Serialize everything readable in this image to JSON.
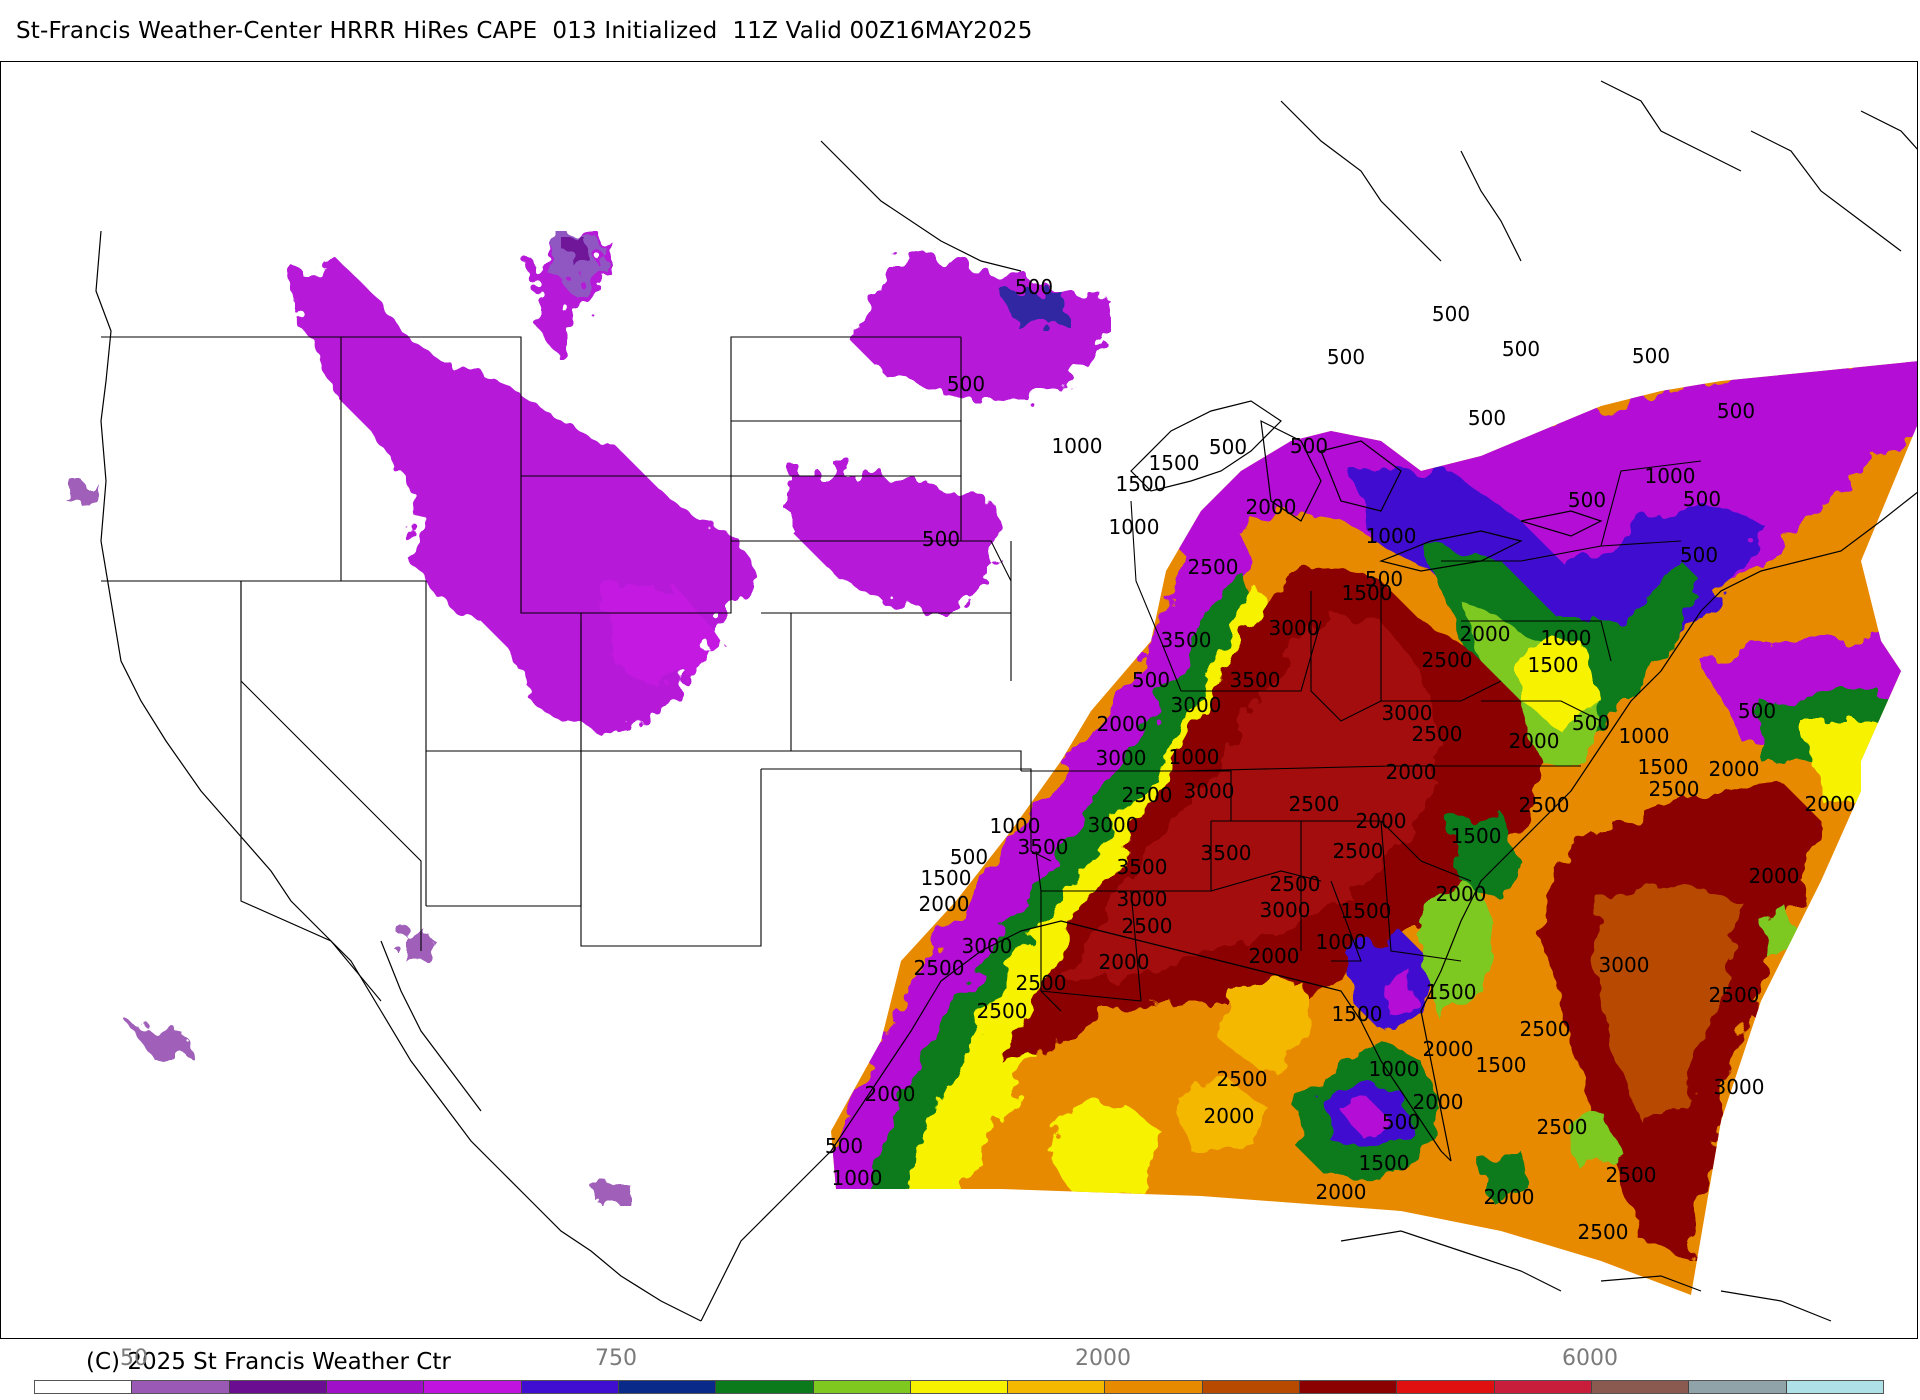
{
  "header": {
    "title": "St-Francis Weather-Center HRRR HiRes CAPE  013 Initialized  11Z Valid 00Z16MAY2025"
  },
  "footer": {
    "copyright": "(C) 2025 St Francis Weather Ctr"
  },
  "colorbar": {
    "visible_labels": [
      "50",
      "750",
      "2000",
      "6000"
    ],
    "colors": [
      "#ffffff",
      "#9b59b6",
      "#6a0d91",
      "#a010c8",
      "#c013e0",
      "#3f0ed0",
      "#0a2a8a",
      "#0b7a1a",
      "#7ec820",
      "#f6f200",
      "#f5b800",
      "#e88a00",
      "#b84a00",
      "#8b0000",
      "#e01010",
      "#c81e3c",
      "#8a5a50",
      "#8fa3a8",
      "#aee0e8"
    ]
  },
  "map": {
    "region": "United States / Gulf of Mexico / Western Atlantic",
    "field": "CAPE",
    "contour_labels": [
      {
        "text": "500",
        "tx": 1033,
        "ty": 293
      },
      {
        "text": "500",
        "tx": 965,
        "ty": 390
      },
      {
        "text": "500",
        "tx": 1450,
        "ty": 320
      },
      {
        "text": "500",
        "tx": 1345,
        "ty": 363
      },
      {
        "text": "500",
        "tx": 1520,
        "ty": 355
      },
      {
        "text": "500",
        "tx": 1650,
        "ty": 362
      },
      {
        "text": "500",
        "tx": 1486,
        "ty": 424
      },
      {
        "text": "500",
        "tx": 1735,
        "ty": 417
      },
      {
        "text": "500",
        "tx": 1227,
        "ty": 453
      },
      {
        "text": "500",
        "tx": 1308,
        "ty": 452
      },
      {
        "text": "500",
        "tx": 1586,
        "ty": 506
      },
      {
        "text": "500",
        "tx": 1701,
        "ty": 505
      },
      {
        "text": "500",
        "tx": 1698,
        "ty": 561
      },
      {
        "text": "500",
        "tx": 940,
        "ty": 545
      },
      {
        "text": "500",
        "tx": 1383,
        "ty": 585
      },
      {
        "text": "500",
        "tx": 1150,
        "ty": 686
      },
      {
        "text": "500",
        "tx": 1590,
        "ty": 729
      },
      {
        "text": "500",
        "tx": 1756,
        "ty": 717
      },
      {
        "text": "500",
        "tx": 968,
        "ty": 863
      },
      {
        "text": "500",
        "tx": 1400,
        "ty": 1128
      },
      {
        "text": "500",
        "tx": 843,
        "ty": 1152
      },
      {
        "text": "1000",
        "tx": 1076,
        "ty": 452
      },
      {
        "text": "1000",
        "tx": 1133,
        "ty": 533
      },
      {
        "text": "1000",
        "tx": 1390,
        "ty": 542
      },
      {
        "text": "1000",
        "tx": 1669,
        "ty": 482
      },
      {
        "text": "1000",
        "tx": 1565,
        "ty": 644
      },
      {
        "text": "1000",
        "tx": 1193,
        "ty": 763
      },
      {
        "text": "1000",
        "tx": 1014,
        "ty": 832
      },
      {
        "text": "1000",
        "tx": 1643,
        "ty": 742
      },
      {
        "text": "1000",
        "tx": 1340,
        "ty": 948
      },
      {
        "text": "1000",
        "tx": 1393,
        "ty": 1075
      },
      {
        "text": "1000",
        "tx": 856,
        "ty": 1184
      },
      {
        "text": "1500",
        "tx": 1173,
        "ty": 469
      },
      {
        "text": "1500",
        "tx": 1140,
        "ty": 490
      },
      {
        "text": "1500",
        "tx": 1366,
        "ty": 599
      },
      {
        "text": "1500",
        "tx": 1552,
        "ty": 671
      },
      {
        "text": "1500",
        "tx": 1662,
        "ty": 773
      },
      {
        "text": "1500",
        "tx": 1475,
        "ty": 842
      },
      {
        "text": "1500",
        "tx": 1365,
        "ty": 917
      },
      {
        "text": "1500",
        "tx": 945,
        "ty": 884
      },
      {
        "text": "1500",
        "tx": 1450,
        "ty": 998
      },
      {
        "text": "1500",
        "tx": 1356,
        "ty": 1020
      },
      {
        "text": "1500",
        "tx": 1500,
        "ty": 1071
      },
      {
        "text": "1500",
        "tx": 1383,
        "ty": 1169
      },
      {
        "text": "2000",
        "tx": 1270,
        "ty": 513
      },
      {
        "text": "2000",
        "tx": 1484,
        "ty": 640
      },
      {
        "text": "2000",
        "tx": 1533,
        "ty": 747
      },
      {
        "text": "2000",
        "tx": 1410,
        "ty": 778
      },
      {
        "text": "2000",
        "tx": 1733,
        "ty": 775
      },
      {
        "text": "2000",
        "tx": 1829,
        "ty": 810
      },
      {
        "text": "2000",
        "tx": 1121,
        "ty": 730
      },
      {
        "text": "2000",
        "tx": 1380,
        "ty": 827
      },
      {
        "text": "2000",
        "tx": 1773,
        "ty": 882
      },
      {
        "text": "2000",
        "tx": 943,
        "ty": 910
      },
      {
        "text": "2000",
        "tx": 1460,
        "ty": 900
      },
      {
        "text": "2000",
        "tx": 1123,
        "ty": 968
      },
      {
        "text": "2000",
        "tx": 1273,
        "ty": 962
      },
      {
        "text": "2000",
        "tx": 1447,
        "ty": 1055
      },
      {
        "text": "2000",
        "tx": 1437,
        "ty": 1108
      },
      {
        "text": "2000",
        "tx": 889,
        "ty": 1100
      },
      {
        "text": "2000",
        "tx": 1228,
        "ty": 1122
      },
      {
        "text": "2000",
        "tx": 1340,
        "ty": 1198
      },
      {
        "text": "2000",
        "tx": 1508,
        "ty": 1203
      },
      {
        "text": "2500",
        "tx": 1212,
        "ty": 573
      },
      {
        "text": "2500",
        "tx": 1446,
        "ty": 666
      },
      {
        "text": "2500",
        "tx": 1436,
        "ty": 740
      },
      {
        "text": "2500",
        "tx": 1543,
        "ty": 811
      },
      {
        "text": "2500",
        "tx": 1673,
        "ty": 795
      },
      {
        "text": "2500",
        "tx": 1146,
        "ty": 801
      },
      {
        "text": "2500",
        "tx": 1313,
        "ty": 810
      },
      {
        "text": "2500",
        "tx": 1357,
        "ty": 857
      },
      {
        "text": "2500",
        "tx": 1294,
        "ty": 890
      },
      {
        "text": "2500",
        "tx": 1146,
        "ty": 932
      },
      {
        "text": "2500",
        "tx": 938,
        "ty": 974
      },
      {
        "text": "2500",
        "tx": 1040,
        "ty": 989
      },
      {
        "text": "2500",
        "tx": 1001,
        "ty": 1017
      },
      {
        "text": "2500",
        "tx": 1733,
        "ty": 1001
      },
      {
        "text": "2500",
        "tx": 1544,
        "ty": 1035
      },
      {
        "text": "2500",
        "tx": 1241,
        "ty": 1085
      },
      {
        "text": "2500",
        "tx": 1561,
        "ty": 1133
      },
      {
        "text": "2500",
        "tx": 1630,
        "ty": 1181
      },
      {
        "text": "2500",
        "tx": 1602,
        "ty": 1238
      },
      {
        "text": "3000",
        "tx": 1293,
        "ty": 634
      },
      {
        "text": "3000",
        "tx": 1195,
        "ty": 711
      },
      {
        "text": "3000",
        "tx": 1406,
        "ty": 719
      },
      {
        "text": "3000",
        "tx": 1120,
        "ty": 764
      },
      {
        "text": "3000",
        "tx": 1208,
        "ty": 797
      },
      {
        "text": "3000",
        "tx": 1112,
        "ty": 831
      },
      {
        "text": "3000",
        "tx": 1141,
        "ty": 905
      },
      {
        "text": "3000",
        "tx": 1284,
        "ty": 916
      },
      {
        "text": "3000",
        "tx": 986,
        "ty": 952
      },
      {
        "text": "3000",
        "tx": 1623,
        "ty": 971
      },
      {
        "text": "3000",
        "tx": 1738,
        "ty": 1093
      },
      {
        "text": "3500",
        "tx": 1185,
        "ty": 646
      },
      {
        "text": "3500",
        "tx": 1254,
        "ty": 686
      },
      {
        "text": "3500",
        "tx": 1042,
        "ty": 853
      },
      {
        "text": "3500",
        "tx": 1141,
        "ty": 873
      },
      {
        "text": "3500",
        "tx": 1225,
        "ty": 859
      }
    ]
  }
}
